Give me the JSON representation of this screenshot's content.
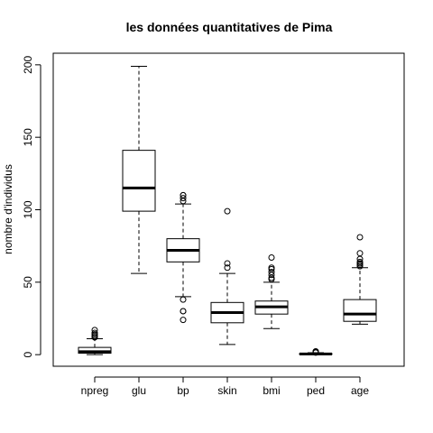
{
  "chart_data": {
    "type": "boxplot",
    "title": "les données quantitatives de Pima",
    "xlabel": "",
    "ylabel": "nombre d'individus",
    "ylim": [
      -8,
      208
    ],
    "yticks": [
      0,
      50,
      100,
      150,
      200
    ],
    "grid": false,
    "categories": [
      "npreg",
      "glu",
      "bp",
      "skin",
      "bmi",
      "ped",
      "age"
    ],
    "boxes": [
      {
        "name": "npreg",
        "whisker_low": 0,
        "q1": 1,
        "median": 2,
        "q3": 5,
        "whisker_high": 11,
        "outliers": [
          12,
          12,
          13,
          14,
          15,
          17
        ]
      },
      {
        "name": "glu",
        "whisker_low": 56,
        "q1": 99,
        "median": 115,
        "q3": 141,
        "whisker_high": 199,
        "outliers": []
      },
      {
        "name": "bp",
        "whisker_low": 40,
        "q1": 64,
        "median": 72,
        "q3": 80,
        "whisker_high": 104,
        "outliers": [
          24,
          30,
          30,
          38,
          106,
          108,
          110,
          110
        ]
      },
      {
        "name": "skin",
        "whisker_low": 7,
        "q1": 22,
        "median": 29,
        "q3": 36,
        "whisker_high": 56,
        "outliers": [
          60,
          63,
          99
        ]
      },
      {
        "name": "bmi",
        "whisker_low": 18,
        "q1": 28,
        "median": 33,
        "q3": 37,
        "whisker_high": 50,
        "outliers": [
          52,
          53,
          55,
          57,
          59,
          60,
          67
        ]
      },
      {
        "name": "ped",
        "whisker_low": 0.1,
        "q1": 0.26,
        "median": 0.45,
        "q3": 0.68,
        "whisker_high": 1.3,
        "outliers": [
          1.4,
          1.6,
          1.8,
          2.1,
          2.3
        ]
      },
      {
        "name": "age",
        "whisker_low": 21,
        "q1": 23,
        "median": 28,
        "q3": 38,
        "whisker_high": 60,
        "outliers": [
          61,
          62,
          63,
          63,
          64,
          66,
          70,
          81
        ]
      }
    ]
  }
}
